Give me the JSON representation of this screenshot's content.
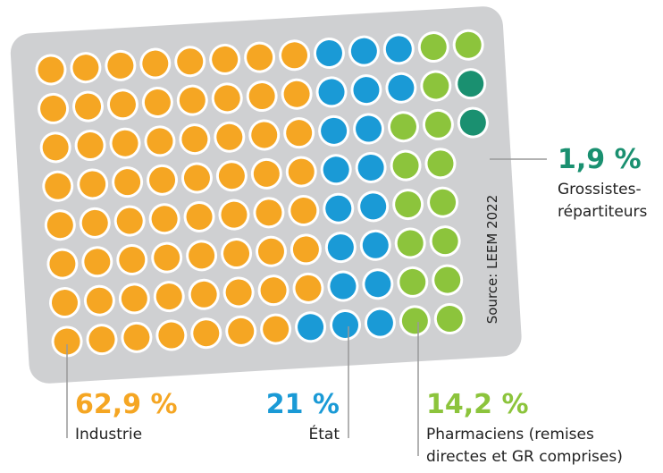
{
  "chart_data": {
    "type": "waffle",
    "source": "Source: LEEM 2022",
    "series": [
      {
        "name": "Industrie",
        "color": "#f5a623",
        "values": [
          62.9
        ],
        "value_labels": [
          "62,9 %"
        ]
      },
      {
        "name": "État",
        "color": "#1a9ad6",
        "values": [
          21
        ],
        "value_labels": [
          "21 %"
        ]
      },
      {
        "name": "Pharmaciens (remises directes et GR comprises)",
        "color": "#8cc43c",
        "values": [
          14.2
        ],
        "value_labels": [
          "14,2 %"
        ]
      },
      {
        "name": "Grossistes-répartiteurs",
        "color": "#1a9070",
        "values": [
          1.9
        ],
        "value_labels": [
          "1,9 %"
        ]
      }
    ]
  }
}
